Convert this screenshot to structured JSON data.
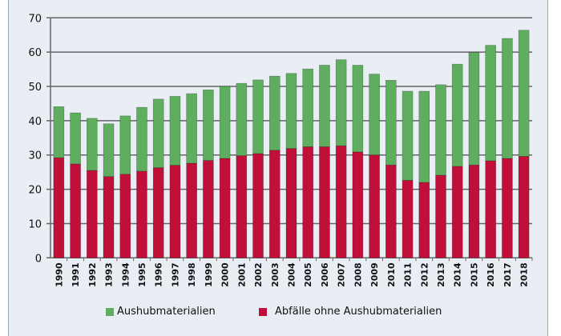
{
  "chart_data": {
    "type": "bar",
    "stacked": true,
    "categories": [
      "1990",
      "1991",
      "1992",
      "1993",
      "1994",
      "1995",
      "1996",
      "1997",
      "1998",
      "1999",
      "2000",
      "2001",
      "2002",
      "2003",
      "2004",
      "2005",
      "2006",
      "2007",
      "2008",
      "2009",
      "2010",
      "2011",
      "2012",
      "2013",
      "2014",
      "2015",
      "2016",
      "2017",
      "2018"
    ],
    "series": [
      {
        "name": "Abfälle ohne Aushubmaterialien",
        "color": "#c0103a",
        "values": [
          29.2,
          27.4,
          25.5,
          23.7,
          24.4,
          25.3,
          26.3,
          27.0,
          27.6,
          28.4,
          29.0,
          29.8,
          30.4,
          31.4,
          31.9,
          32.4,
          32.4,
          32.7,
          30.9,
          30.0,
          27.1,
          22.6,
          22.0,
          24.1,
          26.7,
          27.1,
          28.3,
          29.0,
          29.6
        ]
      },
      {
        "name": "Aushubmaterialien",
        "color": "#5fae60",
        "values": [
          14.9,
          14.9,
          15.2,
          15.4,
          17.0,
          18.6,
          20.0,
          20.1,
          20.3,
          20.6,
          21.0,
          21.1,
          21.5,
          21.6,
          21.9,
          22.7,
          23.8,
          25.1,
          25.3,
          23.6,
          24.7,
          26.0,
          26.6,
          26.4,
          29.8,
          32.8,
          33.7,
          35.0,
          36.8
        ]
      }
    ],
    "ylim": [
      0,
      70
    ],
    "yticks": [
      "0",
      "10",
      "20",
      "30",
      "40",
      "50",
      "60",
      "70"
    ],
    "grid": true,
    "legend_position": "bottom",
    "legend": [
      "Aushubmaterialien",
      "Abfälle ohne Aushubmaterialien"
    ]
  }
}
